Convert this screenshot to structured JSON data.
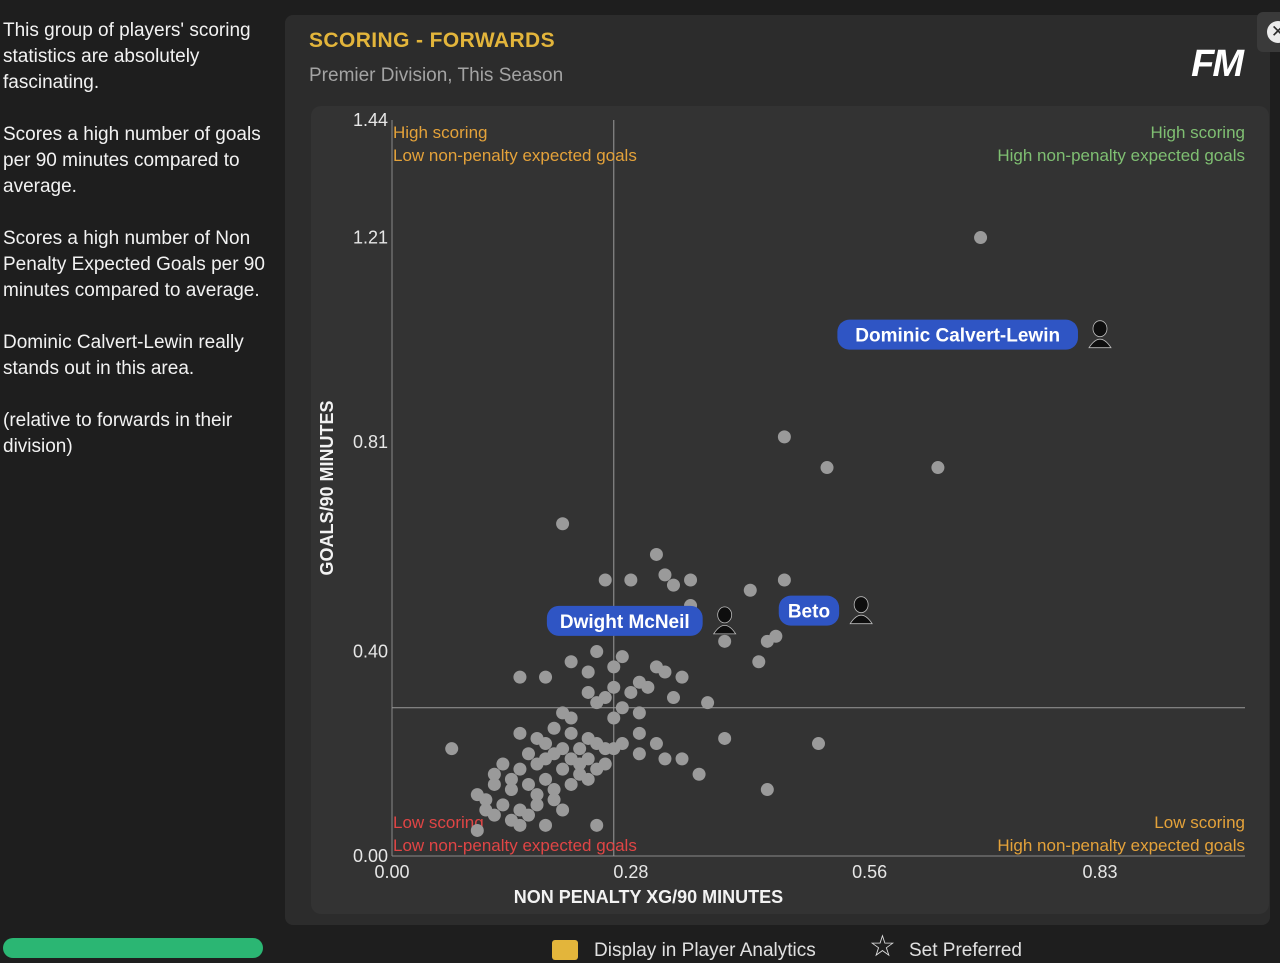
{
  "sidebar": {
    "paragraphs": [
      "This group of players' scoring statistics are absolutely fascinating.",
      "Scores a high number of goals per 90 minutes compared to average.",
      "Scores a high number of Non Penalty Expected Goals per 90 minutes compared to average.",
      "Dominic Calvert-Lewin really stands out in this area.",
      "(relative to forwards in their division)"
    ]
  },
  "panel": {
    "title": "SCORING - FORWARDS",
    "subtitle": "Premier Division, This Season",
    "logo": "FM",
    "close_icon": "close-icon"
  },
  "bottom": {
    "check_label": "Display in Player Analytics",
    "pref_label": "Set Preferred"
  },
  "colors": {
    "title": "#e3b53b",
    "point": "#9a9a9a",
    "label_bg": "#2f55c4",
    "q_green": "#7fbf72",
    "q_orange": "#e4a23a",
    "q_red": "#e04545"
  },
  "chart_data": {
    "type": "scatter",
    "xlabel": "NON PENALTY XG/90 MINUTES",
    "ylabel": "GOALS/90 MINUTES",
    "xlim": [
      0,
      1.0
    ],
    "ylim": [
      0,
      1.44
    ],
    "x_ticks": [
      {
        "value": 0.0,
        "label": "0.00"
      },
      {
        "value": 0.28,
        "label": "0.28"
      },
      {
        "value": 0.56,
        "label": "0.56"
      },
      {
        "value": 0.83,
        "label": "0.83"
      }
    ],
    "y_ticks": [
      {
        "value": 0.0,
        "label": "0.00"
      },
      {
        "value": 0.4,
        "label": "0.40"
      },
      {
        "value": 0.81,
        "label": "0.81"
      },
      {
        "value": 1.21,
        "label": "1.21"
      },
      {
        "value": 1.44,
        "label": "1.44"
      }
    ],
    "avg_x": 0.26,
    "avg_y": 0.29,
    "quadrants": {
      "top_left": [
        "High scoring",
        "Low non-penalty expected goals"
      ],
      "top_right": [
        "High scoring",
        "High non-penalty expected goals"
      ],
      "bottom_left": [
        "Low scoring",
        "Low non-penalty expected goals"
      ],
      "bottom_right": [
        "Low scoring",
        "High non-penalty expected goals"
      ]
    },
    "highlighted": [
      {
        "name": "Dominic Calvert-Lewin",
        "x": 0.83,
        "y": 1.02
      },
      {
        "name": "Dwight McNeil",
        "x": 0.39,
        "y": 0.46
      },
      {
        "name": "Beto",
        "x": 0.55,
        "y": 0.48
      }
    ],
    "points": [
      [
        0.69,
        1.21
      ],
      [
        0.46,
        0.82
      ],
      [
        0.51,
        0.76
      ],
      [
        0.64,
        0.76
      ],
      [
        0.2,
        0.65
      ],
      [
        0.31,
        0.59
      ],
      [
        0.25,
        0.54
      ],
      [
        0.28,
        0.54
      ],
      [
        0.32,
        0.55
      ],
      [
        0.35,
        0.54
      ],
      [
        0.42,
        0.52
      ],
      [
        0.46,
        0.54
      ],
      [
        0.33,
        0.53
      ],
      [
        0.35,
        0.49
      ],
      [
        0.44,
        0.42
      ],
      [
        0.45,
        0.43
      ],
      [
        0.43,
        0.38
      ],
      [
        0.39,
        0.42
      ],
      [
        0.24,
        0.4
      ],
      [
        0.21,
        0.38
      ],
      [
        0.15,
        0.35
      ],
      [
        0.18,
        0.35
      ],
      [
        0.23,
        0.36
      ],
      [
        0.26,
        0.37
      ],
      [
        0.27,
        0.39
      ],
      [
        0.31,
        0.37
      ],
      [
        0.32,
        0.36
      ],
      [
        0.34,
        0.35
      ],
      [
        0.26,
        0.33
      ],
      [
        0.28,
        0.32
      ],
      [
        0.29,
        0.34
      ],
      [
        0.3,
        0.33
      ],
      [
        0.33,
        0.31
      ],
      [
        0.37,
        0.3
      ],
      [
        0.23,
        0.32
      ],
      [
        0.24,
        0.3
      ],
      [
        0.25,
        0.31
      ],
      [
        0.27,
        0.29
      ],
      [
        0.29,
        0.28
      ],
      [
        0.2,
        0.28
      ],
      [
        0.21,
        0.27
      ],
      [
        0.26,
        0.27
      ],
      [
        0.29,
        0.24
      ],
      [
        0.19,
        0.25
      ],
      [
        0.21,
        0.24
      ],
      [
        0.23,
        0.23
      ],
      [
        0.15,
        0.24
      ],
      [
        0.17,
        0.23
      ],
      [
        0.18,
        0.22
      ],
      [
        0.2,
        0.21
      ],
      [
        0.22,
        0.21
      ],
      [
        0.24,
        0.22
      ],
      [
        0.25,
        0.21
      ],
      [
        0.27,
        0.22
      ],
      [
        0.31,
        0.22
      ],
      [
        0.39,
        0.23
      ],
      [
        0.5,
        0.22
      ],
      [
        0.07,
        0.21
      ],
      [
        0.16,
        0.2
      ],
      [
        0.18,
        0.19
      ],
      [
        0.19,
        0.2
      ],
      [
        0.21,
        0.19
      ],
      [
        0.22,
        0.18
      ],
      [
        0.23,
        0.19
      ],
      [
        0.26,
        0.21
      ],
      [
        0.29,
        0.2
      ],
      [
        0.32,
        0.19
      ],
      [
        0.34,
        0.19
      ],
      [
        0.13,
        0.18
      ],
      [
        0.15,
        0.17
      ],
      [
        0.17,
        0.18
      ],
      [
        0.2,
        0.17
      ],
      [
        0.22,
        0.16
      ],
      [
        0.24,
        0.17
      ],
      [
        0.25,
        0.18
      ],
      [
        0.12,
        0.16
      ],
      [
        0.14,
        0.15
      ],
      [
        0.16,
        0.14
      ],
      [
        0.18,
        0.15
      ],
      [
        0.19,
        0.13
      ],
      [
        0.21,
        0.14
      ],
      [
        0.23,
        0.15
      ],
      [
        0.36,
        0.16
      ],
      [
        0.12,
        0.14
      ],
      [
        0.14,
        0.13
      ],
      [
        0.17,
        0.12
      ],
      [
        0.19,
        0.11
      ],
      [
        0.44,
        0.13
      ],
      [
        0.1,
        0.12
      ],
      [
        0.11,
        0.11
      ],
      [
        0.13,
        0.1
      ],
      [
        0.15,
        0.09
      ],
      [
        0.17,
        0.1
      ],
      [
        0.2,
        0.09
      ],
      [
        0.12,
        0.08
      ],
      [
        0.14,
        0.07
      ],
      [
        0.15,
        0.06
      ],
      [
        0.18,
        0.06
      ],
      [
        0.1,
        0.05
      ],
      [
        0.24,
        0.06
      ],
      [
        0.16,
        0.08
      ],
      [
        0.11,
        0.09
      ]
    ]
  }
}
